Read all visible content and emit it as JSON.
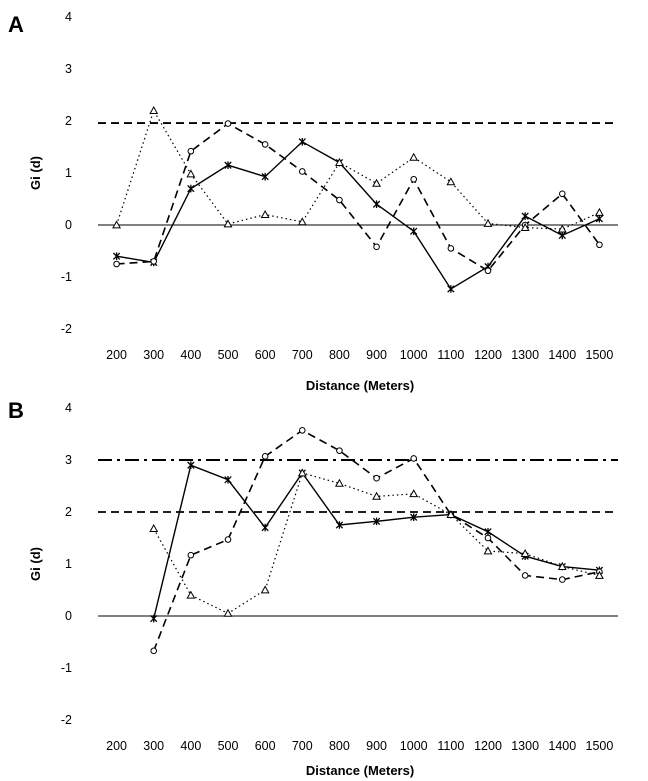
{
  "chart_data": [
    {
      "panel": "A",
      "type": "line",
      "xlabel": "Distance (Meters)",
      "ylabel": "Gi (d)",
      "ylim": [
        -2,
        4
      ],
      "yticks": [
        "-2",
        "-1",
        "0",
        "1",
        "2",
        "3",
        "4"
      ],
      "categories": [
        "200",
        "300",
        "400",
        "500",
        "600",
        "700",
        "800",
        "900",
        "1000",
        "1100",
        "1200",
        "1300",
        "1400",
        "1500"
      ],
      "reference_lines": [
        {
          "value": 1.96,
          "style": "dashed"
        }
      ],
      "series": [
        {
          "style": "solid",
          "marker": "asterisk",
          "values": [
            -0.6,
            -0.72,
            0.7,
            1.15,
            0.93,
            1.6,
            1.2,
            0.4,
            -0.12,
            -1.23,
            -0.8,
            0.17,
            -0.2,
            0.12
          ]
        },
        {
          "style": "dashed",
          "marker": "circle",
          "values": [
            -0.75,
            -0.7,
            1.42,
            1.95,
            1.55,
            1.03,
            0.48,
            -0.42,
            0.88,
            -0.45,
            -0.88,
            0.0,
            0.6,
            -0.38
          ]
        },
        {
          "style": "dotted",
          "marker": "triangle",
          "values": [
            0.0,
            2.2,
            0.98,
            0.02,
            0.2,
            0.06,
            1.2,
            0.8,
            1.3,
            0.83,
            0.03,
            -0.05,
            -0.08,
            0.24
          ]
        }
      ]
    },
    {
      "panel": "B",
      "type": "line",
      "xlabel": "Distance (Meters)",
      "ylabel": "Gi (d)",
      "ylim": [
        -2,
        4
      ],
      "yticks": [
        "-2",
        "-1",
        "0",
        "1",
        "2",
        "3",
        "4"
      ],
      "categories": [
        "200",
        "300",
        "400",
        "500",
        "600",
        "700",
        "800",
        "900",
        "1000",
        "1100",
        "1200",
        "1300",
        "1400",
        "1500"
      ],
      "reference_lines": [
        {
          "value": 3.0,
          "style": "dash-dot"
        },
        {
          "value": 2.0,
          "style": "dashed"
        }
      ],
      "series": [
        {
          "style": "solid",
          "marker": "asterisk",
          "values": [
            null,
            -0.05,
            2.9,
            2.62,
            1.7,
            2.75,
            1.75,
            1.82,
            1.9,
            1.95,
            1.62,
            1.15,
            0.95,
            0.88
          ]
        },
        {
          "style": "dashed",
          "marker": "circle",
          "values": [
            null,
            -0.67,
            1.17,
            1.47,
            3.07,
            3.57,
            3.18,
            2.65,
            3.03,
            1.95,
            1.5,
            0.78,
            0.7,
            0.85
          ]
        },
        {
          "style": "dotted",
          "marker": "triangle",
          "values": [
            null,
            1.68,
            0.4,
            0.05,
            0.5,
            2.75,
            2.55,
            2.3,
            2.35,
            1.95,
            1.25,
            1.2,
            0.95,
            0.78
          ]
        }
      ]
    }
  ]
}
